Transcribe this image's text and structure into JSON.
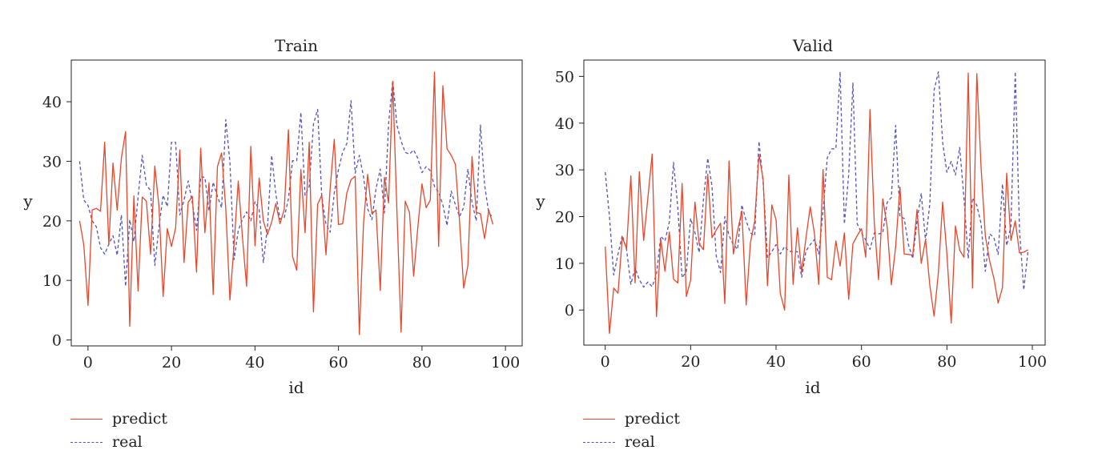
{
  "colors": {
    "predict": "#e8462a",
    "real": "#5252c0"
  },
  "chart_data": [
    {
      "type": "line",
      "title": "Train",
      "xlabel": "id",
      "ylabel": "y",
      "xlim": [
        -4,
        104
      ],
      "ylim": [
        -1,
        47
      ],
      "xticks": [
        0,
        20,
        40,
        60,
        80,
        100
      ],
      "yticks": [
        0,
        10,
        20,
        30,
        40
      ],
      "legend": "bottom-left",
      "series": [
        {
          "name": "predict",
          "style": "solid",
          "color": "#e8462a",
          "x": [
            -2,
            -1,
            0,
            1,
            2,
            3,
            4,
            5,
            6,
            7,
            8,
            9,
            10,
            11,
            12,
            13,
            14,
            15,
            16,
            17,
            18,
            19,
            20,
            21,
            22,
            23,
            24,
            25,
            26,
            27,
            28,
            29,
            30,
            31,
            32,
            33,
            34,
            35,
            36,
            37,
            38,
            39,
            40,
            41,
            42,
            43,
            44,
            45,
            46,
            47,
            48,
            49,
            50,
            51,
            52,
            53,
            54,
            55,
            56,
            57,
            58,
            59,
            60,
            61,
            62,
            63,
            64,
            65,
            66,
            67,
            68,
            69,
            70,
            71,
            72,
            73,
            74,
            75,
            76,
            77,
            78,
            79,
            80,
            81,
            82,
            83,
            84,
            85,
            86,
            87,
            88,
            89,
            90,
            91,
            92,
            93,
            94,
            95,
            96,
            97
          ],
          "y": [
            20,
            16,
            5.8,
            21.8,
            22.1,
            21.6,
            33.2,
            16,
            29.7,
            21.8,
            30.6,
            35,
            2.3,
            24.2,
            8.2,
            24,
            23.3,
            14.4,
            29.2,
            22.4,
            7.3,
            18.7,
            15.7,
            18.8,
            31.9,
            13,
            23.1,
            24.1,
            11.4,
            32.2,
            18,
            26.4,
            7.6,
            29.1,
            31.4,
            22.1,
            6.7,
            16.1,
            26.7,
            17.3,
            9,
            32.5,
            15.8,
            27.2,
            20,
            17.7,
            19.8,
            22.9,
            19.5,
            21.9,
            35.3,
            14,
            11.7,
            28.6,
            18,
            33.2,
            4.7,
            22.8,
            24.3,
            14.3,
            25.4,
            33.7,
            19.4,
            19.5,
            24.7,
            26.9,
            27.5,
            0.9,
            19.6,
            27.8,
            21.2,
            21.8,
            8.3,
            27.3,
            23,
            43.4,
            21.7,
            1.3,
            23.3,
            21.4,
            10.7,
            18.9,
            26.2,
            22.2,
            23.5,
            45,
            15.7,
            42.7,
            32.1,
            31,
            29.5,
            19.9,
            8.7,
            12.5,
            30.8,
            21.4,
            21.2,
            17,
            21.8,
            19.4
          ]
        },
        {
          "name": "real",
          "style": "dashed",
          "color": "#5252c0",
          "x": [
            -2,
            -1,
            0,
            1,
            2,
            3,
            4,
            5,
            6,
            7,
            8,
            9,
            10,
            11,
            12,
            13,
            14,
            15,
            16,
            17,
            18,
            19,
            20,
            21,
            22,
            23,
            24,
            25,
            26,
            27,
            28,
            29,
            30,
            31,
            32,
            33,
            34,
            35,
            36,
            37,
            38,
            39,
            40,
            41,
            42,
            43,
            44,
            45,
            46,
            47,
            48,
            49,
            50,
            51,
            52,
            53,
            54,
            55,
            56,
            57,
            58,
            59,
            60,
            61,
            62,
            63,
            64,
            65,
            66,
            67,
            68,
            69,
            70,
            71,
            72,
            73,
            74,
            75,
            76,
            77,
            78,
            79,
            80,
            81,
            82,
            83,
            84,
            85,
            86,
            87,
            88,
            89,
            90,
            91,
            92,
            93,
            94,
            95,
            96,
            97
          ],
          "y": [
            30,
            23.5,
            22.6,
            20,
            19,
            15.5,
            14.4,
            16.1,
            17.5,
            14.2,
            21,
            9,
            20.2,
            16.5,
            24,
            31,
            26,
            25.1,
            12.5,
            19,
            24.3,
            22.4,
            33.2,
            33.2,
            21,
            23.5,
            26.7,
            23,
            18.4,
            27.4,
            27.3,
            21.7,
            26.5,
            24.1,
            22.2,
            37,
            29.8,
            13.5,
            18.4,
            20.2,
            21.5,
            20,
            23.2,
            21.9,
            13,
            19,
            31,
            24.5,
            20.3,
            20.5,
            23.7,
            30.1,
            30.1,
            38.2,
            24.3,
            25.8,
            36.2,
            38.7,
            24,
            19.5,
            18.1,
            24.7,
            28.6,
            31.5,
            33,
            40.2,
            28,
            31,
            27.4,
            22,
            20.2,
            25.4,
            28.7,
            21.3,
            36.3,
            43.6,
            36.1,
            33.4,
            31.5,
            31.2,
            31.9,
            30.5,
            28.1,
            29.1,
            28.4,
            25.8,
            24.8,
            22.7,
            19.2,
            25,
            22.7,
            20.7,
            22.3,
            28.7,
            23.1,
            20,
            36.1,
            26,
            21.3,
            20.6
          ]
        }
      ]
    },
    {
      "type": "line",
      "title": "Valid",
      "xlabel": "id",
      "ylabel": "y",
      "xlim": [
        -5,
        103
      ],
      "ylim": [
        -7.5,
        53.5
      ],
      "xticks": [
        0,
        20,
        40,
        60,
        80,
        100
      ],
      "yticks": [
        0,
        10,
        20,
        30,
        40,
        50
      ],
      "legend": "bottom-left",
      "series": [
        {
          "name": "predict",
          "style": "solid",
          "color": "#e8462a",
          "x": [
            0,
            1,
            2,
            3,
            4,
            5,
            6,
            7,
            8,
            9,
            10,
            11,
            12,
            13,
            14,
            15,
            16,
            17,
            18,
            19,
            20,
            21,
            22,
            23,
            24,
            25,
            26,
            27,
            28,
            29,
            30,
            31,
            32,
            33,
            34,
            35,
            36,
            37,
            38,
            39,
            40,
            41,
            42,
            43,
            44,
            45,
            46,
            47,
            48,
            49,
            50,
            51,
            52,
            53,
            54,
            55,
            56,
            57,
            58,
            59,
            60,
            61,
            62,
            63,
            64,
            65,
            66,
            67,
            68,
            69,
            70,
            71,
            72,
            73,
            74,
            75,
            76,
            77,
            78,
            79,
            80,
            81,
            82,
            83,
            84,
            85,
            86,
            87,
            88,
            89,
            90,
            91,
            92,
            93,
            94,
            95,
            96,
            97,
            98,
            99
          ],
          "y": [
            13.6,
            -5,
            4.7,
            3.6,
            15.6,
            13.2,
            28.7,
            5.8,
            29.6,
            14.9,
            24.1,
            33.4,
            -1.4,
            15.2,
            8.3,
            16.7,
            6.6,
            5.8,
            27.1,
            2.9,
            6.4,
            23.1,
            14.2,
            12.9,
            29.1,
            15.5,
            17.1,
            18.6,
            1.4,
            31.9,
            12,
            17,
            21.2,
            1.1,
            14.4,
            19,
            33.3,
            27.8,
            5.2,
            22.5,
            19.3,
            3.6,
            0,
            28.9,
            5.5,
            17.6,
            8.1,
            15.4,
            22.1,
            16.3,
            5.5,
            30.1,
            7,
            6.5,
            14.8,
            9.4,
            16.5,
            2.3,
            14.2,
            15.9,
            17.4,
            11.3,
            42.9,
            18.6,
            6.5,
            23.8,
            17.9,
            5.4,
            13.5,
            26.3,
            12,
            11.9,
            11.7,
            21.5,
            10,
            15.1,
            5.3,
            -1.3,
            8,
            23.1,
            12.1,
            -2.8,
            18,
            12.8,
            11.3,
            50.7,
            4.7,
            50.6,
            30.6,
            15.9,
            10.5,
            6.8,
            1.5,
            4.8,
            29.3,
            14.9,
            19.1,
            12.2,
            12.4,
            12.9
          ]
        },
        {
          "name": "real",
          "style": "dashed",
          "color": "#5252c0",
          "x": [
            0,
            1,
            2,
            3,
            4,
            5,
            6,
            7,
            8,
            9,
            10,
            11,
            12,
            13,
            14,
            15,
            16,
            17,
            18,
            19,
            20,
            21,
            22,
            23,
            24,
            25,
            26,
            27,
            28,
            29,
            30,
            31,
            32,
            33,
            34,
            35,
            36,
            37,
            38,
            39,
            40,
            41,
            42,
            43,
            44,
            45,
            46,
            47,
            48,
            49,
            50,
            51,
            52,
            53,
            54,
            55,
            56,
            57,
            58,
            59,
            60,
            61,
            62,
            63,
            64,
            65,
            66,
            67,
            68,
            69,
            70,
            71,
            72,
            73,
            74,
            75,
            76,
            77,
            78,
            79,
            80,
            81,
            82,
            83,
            84,
            85,
            86,
            87,
            88,
            89,
            90,
            91,
            92,
            93,
            94,
            95,
            96,
            97,
            98,
            99
          ],
          "y": [
            29.5,
            20,
            7.5,
            12,
            16,
            13,
            5.5,
            9,
            6.5,
            4.9,
            6,
            5,
            7.6,
            15.8,
            14.8,
            18.8,
            31.6,
            22,
            6.9,
            8.3,
            19.6,
            16.6,
            12.3,
            23.6,
            32.5,
            26.5,
            11.6,
            8,
            20,
            15.9,
            14,
            13,
            22.5,
            19.1,
            16.5,
            15.9,
            36.1,
            27,
            11.2,
            12.5,
            14,
            12,
            13.6,
            12.6,
            12.5,
            12.5,
            7,
            12.6,
            14,
            15.1,
            12,
            21.2,
            32.6,
            34.5,
            34.5,
            51,
            18.4,
            29,
            48.6,
            18.5,
            16.5,
            15,
            13,
            16.5,
            16.3,
            16.5,
            23,
            24.1,
            39.5,
            20,
            19.6,
            14,
            11,
            19,
            25,
            14.8,
            22.7,
            47,
            51,
            35.9,
            29.5,
            31.8,
            28.9,
            34.8,
            23.8,
            11,
            24,
            22.4,
            18.5,
            8.3,
            16.3,
            15.5,
            11.9,
            27,
            13.8,
            18,
            51,
            17,
            4.3,
            12.8
          ]
        }
      ]
    }
  ]
}
